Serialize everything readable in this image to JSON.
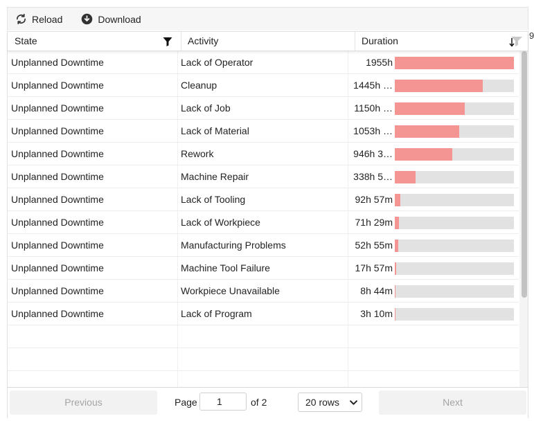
{
  "toolbar": {
    "reload_label": "Reload",
    "download_label": "Download"
  },
  "stray_char": "9",
  "columns": {
    "state": "State",
    "activity": "Activity",
    "duration": "Duration"
  },
  "colors": {
    "bar_fill": "#f59593",
    "bar_track": "#e2e2e2"
  },
  "rows": [
    {
      "state": "Unplanned Downtime",
      "activity": "Lack of Operator",
      "duration": "1955h",
      "fraction": 1.0
    },
    {
      "state": "Unplanned Downtime",
      "activity": "Cleanup",
      "duration": "1445h …",
      "fraction": 0.739
    },
    {
      "state": "Unplanned Downtime",
      "activity": "Lack of Job",
      "duration": "1150h …",
      "fraction": 0.588
    },
    {
      "state": "Unplanned Downtime",
      "activity": "Lack of Material",
      "duration": "1053h …",
      "fraction": 0.539
    },
    {
      "state": "Unplanned Downtime",
      "activity": "Rework",
      "duration": "946h 3…",
      "fraction": 0.484
    },
    {
      "state": "Unplanned Downtime",
      "activity": "Machine Repair",
      "duration": "338h 5…",
      "fraction": 0.173
    },
    {
      "state": "Unplanned Downtime",
      "activity": "Lack of Tooling",
      "duration": "92h 57m",
      "fraction": 0.0475
    },
    {
      "state": "Unplanned Downtime",
      "activity": "Lack of Workpiece",
      "duration": "71h 29m",
      "fraction": 0.0366
    },
    {
      "state": "Unplanned Downtime",
      "activity": "Manufacturing Problems",
      "duration": "52h 55m",
      "fraction": 0.0271
    },
    {
      "state": "Unplanned Downtime",
      "activity": "Machine Tool Failure",
      "duration": "17h 57m",
      "fraction": 0.0092
    },
    {
      "state": "Unplanned Downtime",
      "activity": "Workpiece Unavailable",
      "duration": "8h 44m",
      "fraction": 0.0045
    },
    {
      "state": "Unplanned Downtime",
      "activity": "Lack of Program",
      "duration": "3h 10m",
      "fraction": 0.0016
    }
  ],
  "pagination": {
    "previous_label": "Previous",
    "page_label": "Page",
    "page_value": "1",
    "of_label": "of 2",
    "rows_option": "20 rows",
    "next_label": "Next"
  }
}
